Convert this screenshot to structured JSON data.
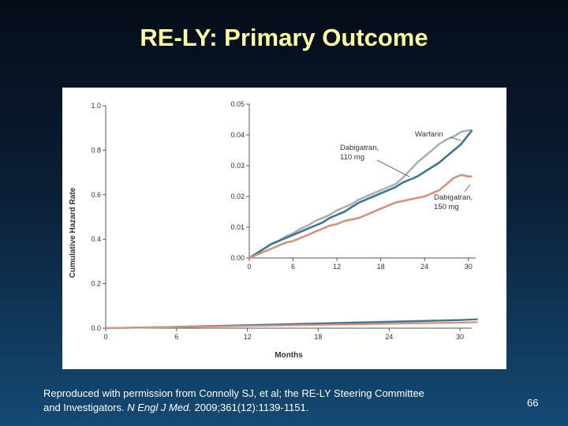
{
  "slide": {
    "title": "RE-LY: Primary Outcome",
    "citation_line1": "Reproduced with permission from Connolly SJ, et al; the RE-LY Steering Committee",
    "citation_line2_a": "and Investigators. ",
    "citation_journal": "N Engl J Med.",
    "citation_line2_b": " 2009;361(12):1139-1151.",
    "page_number": "66"
  },
  "chart_data": [
    {
      "type": "line",
      "title": "",
      "xlabel": "Months",
      "ylabel": "Cumulative Hazard Rate",
      "xlim": [
        0,
        31
      ],
      "ylim": [
        0,
        1.0
      ],
      "x_ticks": [
        0,
        6,
        12,
        18,
        24,
        30
      ],
      "y_ticks": [
        0.0,
        0.2,
        0.4,
        0.6,
        0.8,
        1.0
      ],
      "y_tick_labels": [
        "0.0",
        "0.2",
        "0.4",
        "0.6",
        "0.8",
        "1.0"
      ],
      "grid": false,
      "series": [
        {
          "name": "Warfarin",
          "color": "#aab0b8",
          "x": [
            0,
            6,
            12,
            18,
            24,
            30,
            31.5
          ],
          "y": [
            0,
            0.006,
            0.014,
            0.022,
            0.03,
            0.038,
            0.04
          ]
        },
        {
          "name": "Dabigatran, 110 mg",
          "color": "#3d7590",
          "x": [
            0,
            6,
            12,
            18,
            24,
            30,
            31.5
          ],
          "y": [
            0,
            0.006,
            0.013,
            0.021,
            0.028,
            0.036,
            0.04
          ]
        },
        {
          "name": "Dabigatran, 150 mg",
          "color": "#d4947a",
          "x": [
            0,
            6,
            12,
            18,
            24,
            30,
            31.5
          ],
          "y": [
            0,
            0.005,
            0.01,
            0.015,
            0.02,
            0.025,
            0.027
          ]
        }
      ]
    },
    {
      "type": "line",
      "title": "",
      "xlabel": "",
      "ylabel": "",
      "xlim": [
        0,
        31
      ],
      "ylim": [
        0,
        0.05
      ],
      "x_ticks": [
        0,
        6,
        12,
        18,
        24,
        30
      ],
      "y_ticks": [
        0,
        0.01,
        0.02,
        0.03,
        0.04,
        0.05
      ],
      "y_tick_labels": [
        "0.00",
        "0.01",
        "0.02",
        "0.03",
        "0.04",
        "0.05"
      ],
      "grid": false,
      "series": [
        {
          "name": "Warfarin",
          "color": "#aab0b8",
          "x": [
            0,
            1,
            2,
            3,
            4,
            5,
            6,
            7,
            8,
            9,
            10,
            11,
            12,
            13,
            14,
            15,
            16,
            17,
            18,
            19,
            20,
            21,
            22,
            23,
            24,
            25,
            26,
            27,
            28,
            29,
            30,
            30.5
          ],
          "y": [
            0,
            0.0015,
            0.003,
            0.0045,
            0.0055,
            0.007,
            0.008,
            0.0095,
            0.0105,
            0.012,
            0.013,
            0.014,
            0.0155,
            0.0165,
            0.0175,
            0.019,
            0.02,
            0.021,
            0.022,
            0.023,
            0.024,
            0.026,
            0.0285,
            0.031,
            0.033,
            0.035,
            0.037,
            0.0385,
            0.0395,
            0.041,
            0.0415,
            0.0415
          ]
        },
        {
          "name": "Dabigatran, 110 mg",
          "color": "#3d7590",
          "x": [
            0,
            1,
            2,
            3,
            4,
            5,
            6,
            7,
            8,
            9,
            10,
            11,
            12,
            13,
            14,
            15,
            16,
            17,
            18,
            19,
            20,
            21,
            22,
            23,
            24,
            25,
            26,
            27,
            28,
            29,
            30,
            30.5
          ],
          "y": [
            0,
            0.0015,
            0.003,
            0.0045,
            0.0055,
            0.0065,
            0.0075,
            0.0085,
            0.0095,
            0.0105,
            0.0115,
            0.013,
            0.014,
            0.015,
            0.0165,
            0.018,
            0.019,
            0.02,
            0.021,
            0.022,
            0.023,
            0.0245,
            0.0255,
            0.0265,
            0.028,
            0.0295,
            0.031,
            0.033,
            0.035,
            0.037,
            0.04,
            0.0415
          ]
        },
        {
          "name": "Dabigatran, 150 mg",
          "color": "#d4947a",
          "x": [
            0,
            1,
            2,
            3,
            4,
            5,
            6,
            7,
            8,
            9,
            10,
            11,
            12,
            13,
            14,
            15,
            16,
            17,
            18,
            19,
            20,
            21,
            22,
            23,
            24,
            25,
            26,
            27,
            28,
            29,
            30,
            30.5
          ],
          "y": [
            0,
            0.001,
            0.002,
            0.003,
            0.004,
            0.005,
            0.0055,
            0.0065,
            0.0075,
            0.0085,
            0.0095,
            0.0105,
            0.011,
            0.012,
            0.0125,
            0.013,
            0.014,
            0.015,
            0.016,
            0.017,
            0.018,
            0.0185,
            0.019,
            0.0195,
            0.02,
            0.021,
            0.022,
            0.024,
            0.026,
            0.027,
            0.0265,
            0.0265
          ]
        }
      ]
    }
  ],
  "annotations": [
    {
      "series": "Warfarin",
      "lines": [
        "Warfarin"
      ]
    },
    {
      "series": "Dabigatran, 110 mg",
      "lines": [
        "Dabigatran,",
        "110 mg"
      ]
    },
    {
      "series": "Dabigatran, 150 mg",
      "lines": [
        "Dabigatran,",
        "150 mg"
      ]
    }
  ]
}
